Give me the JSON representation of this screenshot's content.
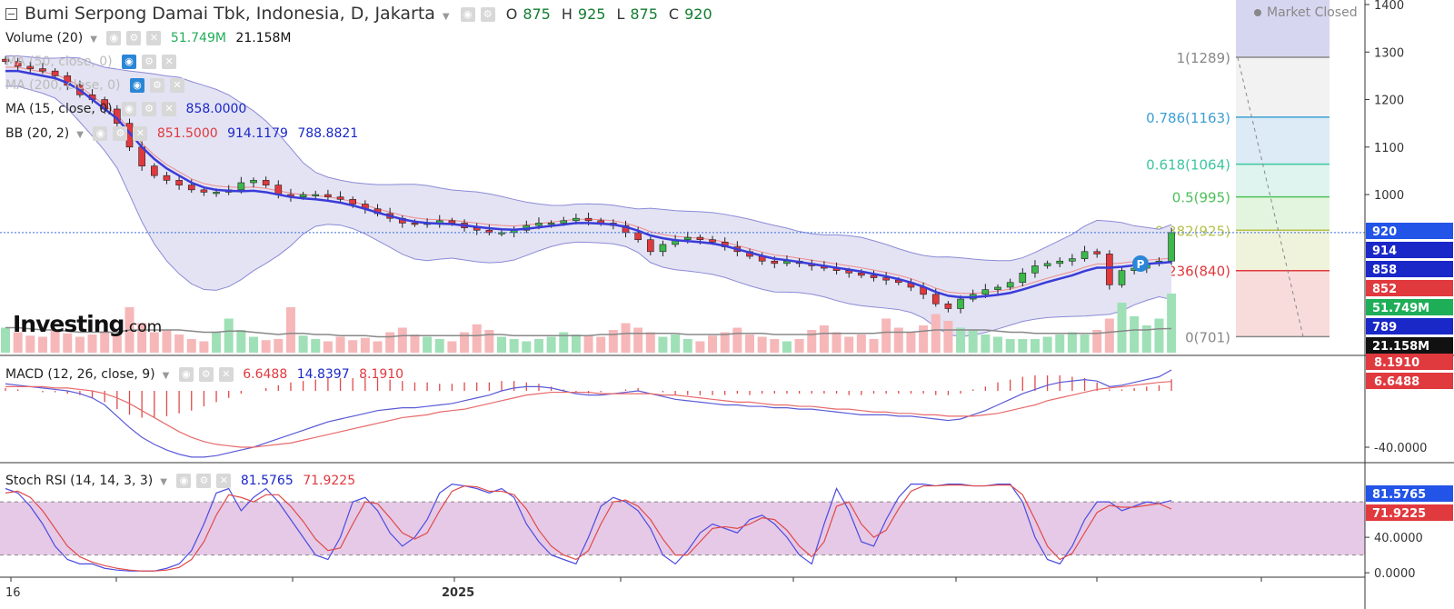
{
  "header": {
    "title": "Bumi Serpong Damai Tbk, Indonesia, D, Jakarta",
    "ohlc": [
      {
        "label": "O",
        "value": "875"
      },
      {
        "label": "H",
        "value": "925"
      },
      {
        "label": "L",
        "value": "875"
      },
      {
        "label": "C",
        "value": "920"
      }
    ],
    "market_status": "Market Closed"
  },
  "legends": {
    "volume": {
      "label": "Volume (20)",
      "v1": "51.749M",
      "v2": "21.158M"
    },
    "ma_a": {
      "label": "MA (50, close, 0)"
    },
    "ma_b": {
      "label": "MA (200, close, 0)"
    },
    "ma15": {
      "label": "MA (15, close, 0)",
      "v1": "858.0000"
    },
    "bb": {
      "label": "BB (20, 2)",
      "v1": "851.5000",
      "v2": "914.1179",
      "v3": "788.8821"
    },
    "macd": {
      "label": "MACD (12, 26, close, 9)",
      "v1": "6.6488",
      "v2": "14.8397",
      "v3": "8.1910"
    },
    "stoch": {
      "label": "Stoch RSI (14, 14, 3, 3)",
      "v1": "81.5765",
      "v2": "71.9225"
    }
  },
  "logo": {
    "main": "Investing",
    "suffix": ".com"
  },
  "colors": {
    "up": "#3bb94b",
    "down": "#e0393e",
    "ma15": "#3a3cd8",
    "bb_band": "#8b8bd6",
    "bb_fill": "#e3e3f3",
    "volume_up": "#9fe0b7",
    "volume_down": "#f6b7b9",
    "stoch_fill": "#e6c9e6",
    "stoch_k": "#4c4ce0",
    "stoch_d": "#e04a4a"
  },
  "icons": [
    "eye-icon",
    "gear-icon",
    "close-icon",
    "chevron-down-icon",
    "pivot-marker-icon"
  ],
  "chart_data": [
    {
      "type": "candlestick",
      "ylim": [
        650,
        1400
      ],
      "yticks": [
        "1400",
        "1300",
        "1200",
        "1100",
        "1000"
      ],
      "x_labels": [
        "16",
        "2025"
      ],
      "price_labels": [
        {
          "text": "920",
          "color": "#2354e8"
        },
        {
          "text": "914",
          "color": "#1a28c8"
        },
        {
          "text": "858",
          "color": "#1a28c8"
        },
        {
          "text": "852",
          "color": "#e0393e"
        },
        {
          "text": "51.749M",
          "color": "#1fae58"
        },
        {
          "text": "789",
          "color": "#1a28c8"
        },
        {
          "text": "21.158M",
          "color": "#111111"
        }
      ],
      "fibonacci": [
        {
          "label": "1(1289)",
          "level": 1289,
          "color": "#888888"
        },
        {
          "label": "0.786(1163)",
          "level": 1163,
          "color": "#3d9fd4"
        },
        {
          "label": "0.618(1064)",
          "level": 1064,
          "color": "#3ec7a0"
        },
        {
          "label": "0.5(995)",
          "level": 995,
          "color": "#4cc05a"
        },
        {
          "label": "0.382(925)",
          "level": 925,
          "color": "#b7c24a"
        },
        {
          "label": "0.236(840)",
          "level": 840,
          "color": "#e0393e"
        },
        {
          "label": "0(701)",
          "level": 701,
          "color": "#888888"
        }
      ],
      "series": [
        {
          "name": "Close",
          "values": [
            1280,
            1270,
            1265,
            1260,
            1250,
            1230,
            1210,
            1200,
            1180,
            1150,
            1100,
            1060,
            1040,
            1030,
            1020,
            1010,
            1005,
            1005,
            1010,
            1025,
            1030,
            1020,
            1000,
            995,
            1000,
            1000,
            995,
            990,
            980,
            970,
            960,
            950,
            940,
            938,
            940,
            945,
            940,
            930,
            925,
            920,
            920,
            925,
            935,
            940,
            940,
            945,
            950,
            945,
            940,
            935,
            920,
            905,
            880,
            895,
            905,
            910,
            905,
            900,
            890,
            880,
            870,
            860,
            855,
            860,
            855,
            850,
            845,
            840,
            835,
            830,
            825,
            820,
            815,
            805,
            790,
            770,
            760,
            780,
            790,
            800,
            805,
            815,
            835,
            850,
            855,
            860,
            865,
            880,
            875,
            810,
            840,
            845,
            855,
            860,
            920
          ]
        },
        {
          "name": "MA15",
          "values": [
            1260,
            1260,
            1255,
            1250,
            1245,
            1235,
            1220,
            1200,
            1180,
            1160,
            1130,
            1100,
            1075,
            1055,
            1040,
            1025,
            1015,
            1010,
            1008,
            1007,
            1008,
            1005,
            1000,
            995,
            992,
            990,
            987,
            983,
            977,
            970,
            962,
            955,
            948,
            943,
            940,
            939,
            938,
            935,
            932,
            929,
            927,
            926,
            928,
            931,
            934,
            937,
            940,
            940,
            939,
            937,
            932,
            924,
            914,
            908,
            904,
            902,
            900,
            897,
            892,
            885,
            878,
            871,
            865,
            862,
            858,
            854,
            850,
            846,
            842,
            838,
            833,
            828,
            822,
            815,
            806,
            795,
            787,
            784,
            784,
            786,
            789,
            793,
            800,
            808,
            816,
            823,
            830,
            839,
            846,
            846,
            848,
            851,
            854,
            856,
            858
          ]
        }
      ]
    },
    {
      "type": "bar",
      "name": "Volume",
      "values": [
        22,
        18,
        15,
        14,
        20,
        17,
        14,
        16,
        19,
        15,
        40,
        26,
        18,
        20,
        16,
        12,
        10,
        18,
        30,
        20,
        14,
        11,
        12,
        40,
        15,
        12,
        10,
        14,
        11,
        13,
        10,
        18,
        22,
        16,
        14,
        12,
        10,
        18,
        25,
        20,
        14,
        12,
        10,
        12,
        14,
        18,
        16,
        15,
        14,
        20,
        26,
        22,
        18,
        14,
        16,
        12,
        10,
        15,
        18,
        22,
        16,
        14,
        12,
        10,
        12,
        20,
        24,
        18,
        14,
        16,
        12,
        30,
        22,
        18,
        24,
        34,
        28,
        22,
        20,
        16,
        14,
        12,
        12,
        12,
        14,
        16,
        18,
        16,
        20,
        30,
        44,
        32,
        24,
        30,
        52
      ],
      "ma_values": [
        22,
        22,
        21,
        20,
        20,
        19,
        18,
        18,
        18,
        18,
        20,
        20,
        20,
        20,
        20,
        19,
        18,
        18,
        19,
        19,
        18,
        17,
        16,
        17,
        17,
        16,
        16,
        15,
        15,
        15,
        14,
        14,
        15,
        15,
        15,
        15,
        15,
        15,
        15,
        16,
        16,
        15,
        15,
        15,
        15,
        15,
        15,
        15,
        16,
        16,
        17,
        17,
        17,
        17,
        17,
        16,
        16,
        16,
        16,
        17,
        17,
        17,
        16,
        16,
        16,
        16,
        17,
        17,
        17,
        17,
        17,
        18,
        18,
        18,
        19,
        20,
        20,
        20,
        20,
        20,
        19,
        18,
        18,
        17,
        17,
        17,
        17,
        17,
        17,
        18,
        19,
        20,
        20,
        21,
        21.158
      ]
    },
    {
      "type": "line",
      "name": "MACD",
      "yticks": [
        "-40.0000"
      ],
      "price_labels": [
        {
          "text": "8.1910",
          "color": "#e0393e"
        },
        {
          "text": "6.6488",
          "color": "#e0393e"
        }
      ],
      "series": [
        {
          "name": "MACD",
          "values": [
            5,
            4,
            3,
            2,
            1,
            0,
            -2,
            -5,
            -10,
            -18,
            -26,
            -33,
            -38,
            -42,
            -45,
            -47,
            -47,
            -46,
            -44,
            -42,
            -40,
            -37,
            -34,
            -31,
            -28,
            -25,
            -22,
            -20,
            -18,
            -16,
            -14,
            -13,
            -12,
            -12,
            -11,
            -10,
            -9,
            -7,
            -5,
            -3,
            0,
            2,
            3,
            3,
            2,
            0,
            -2,
            -3,
            -3,
            -2,
            -1,
            0,
            -2,
            -4,
            -6,
            -7,
            -8,
            -9,
            -10,
            -10,
            -11,
            -11,
            -12,
            -12,
            -13,
            -13,
            -14,
            -15,
            -16,
            -17,
            -17,
            -17,
            -18,
            -18,
            -19,
            -20,
            -21,
            -20,
            -17,
            -14,
            -10,
            -6,
            -2,
            1,
            4,
            6,
            7,
            8,
            7,
            3,
            4,
            6,
            8,
            10,
            14.8397
          ]
        },
        {
          "name": "Signal",
          "values": [
            3,
            3,
            3,
            3,
            2,
            2,
            1,
            0,
            -2,
            -5,
            -9,
            -14,
            -19,
            -24,
            -29,
            -33,
            -36,
            -38,
            -39,
            -40,
            -40,
            -39,
            -38,
            -37,
            -35,
            -33,
            -31,
            -29,
            -27,
            -25,
            -23,
            -21,
            -19,
            -18,
            -17,
            -15,
            -14,
            -13,
            -11,
            -9,
            -7,
            -5,
            -3,
            -2,
            -1,
            -1,
            -1,
            -1,
            -2,
            -2,
            -2,
            -2,
            -2,
            -3,
            -3,
            -4,
            -5,
            -6,
            -7,
            -8,
            -8,
            -9,
            -10,
            -10,
            -11,
            -11,
            -12,
            -13,
            -13,
            -14,
            -15,
            -15,
            -16,
            -16,
            -17,
            -17,
            -18,
            -18,
            -18,
            -17,
            -16,
            -14,
            -12,
            -10,
            -7,
            -5,
            -3,
            -1,
            1,
            2,
            3,
            4,
            5,
            6,
            6.6488
          ]
        },
        {
          "name": "Histogram",
          "values": [
            2,
            1,
            0,
            -1,
            -1,
            -2,
            -3,
            -5,
            -8,
            -13,
            -17,
            -19,
            -19,
            -18,
            -16,
            -14,
            -11,
            -8,
            -5,
            -2,
            0,
            2,
            4,
            6,
            7,
            8,
            9,
            9,
            9,
            9,
            9,
            8,
            7,
            6,
            6,
            5,
            5,
            6,
            6,
            6,
            7,
            7,
            6,
            5,
            3,
            1,
            -1,
            -2,
            -1,
            0,
            1,
            2,
            0,
            -1,
            -3,
            -3,
            -3,
            -3,
            -3,
            -2,
            -3,
            -2,
            -2,
            -2,
            -2,
            -2,
            -2,
            -2,
            -3,
            -3,
            -2,
            -2,
            -2,
            -2,
            -2,
            -3,
            -3,
            -2,
            1,
            3,
            6,
            8,
            10,
            11,
            11,
            11,
            10,
            9,
            6,
            1,
            1,
            2,
            3,
            4,
            8.191
          ]
        }
      ]
    },
    {
      "type": "line",
      "name": "Stoch RSI",
      "ylim": [
        -5,
        115
      ],
      "yticks": [
        "40.0000",
        "0.0000"
      ],
      "bands": [
        20,
        80
      ],
      "price_labels": [
        {
          "text": "81.5765",
          "color": "#2354e8"
        },
        {
          "text": "71.9225",
          "color": "#e0393e"
        }
      ],
      "series": [
        {
          "name": "%K",
          "values": [
            95,
            90,
            75,
            55,
            30,
            15,
            10,
            10,
            5,
            3,
            2,
            2,
            2,
            5,
            10,
            25,
            55,
            90,
            95,
            70,
            85,
            95,
            80,
            60,
            40,
            20,
            15,
            40,
            80,
            85,
            70,
            45,
            30,
            40,
            60,
            90,
            100,
            98,
            95,
            90,
            95,
            85,
            55,
            35,
            20,
            15,
            10,
            40,
            75,
            85,
            80,
            70,
            50,
            20,
            10,
            25,
            45,
            55,
            50,
            45,
            60,
            65,
            55,
            40,
            20,
            10,
            55,
            95,
            70,
            35,
            30,
            60,
            85,
            100,
            100,
            98,
            100,
            100,
            98,
            98,
            100,
            100,
            80,
            40,
            15,
            10,
            30,
            60,
            80,
            80,
            70,
            75,
            80,
            78,
            81.5765
          ]
        },
        {
          "name": "%D",
          "values": [
            90,
            92,
            85,
            70,
            50,
            30,
            18,
            12,
            8,
            5,
            3,
            2,
            2,
            3,
            6,
            15,
            35,
            65,
            88,
            85,
            80,
            88,
            88,
            75,
            58,
            38,
            25,
            28,
            55,
            80,
            78,
            62,
            45,
            38,
            45,
            70,
            92,
            98,
            97,
            92,
            92,
            88,
            72,
            48,
            30,
            20,
            15,
            25,
            55,
            80,
            82,
            75,
            60,
            38,
            20,
            20,
            35,
            50,
            52,
            50,
            55,
            62,
            60,
            48,
            30,
            18,
            35,
            75,
            80,
            55,
            40,
            48,
            72,
            92,
            98,
            98,
            99,
            99,
            98,
            98,
            99,
            99,
            88,
            60,
            30,
            15,
            22,
            45,
            68,
            76,
            74,
            74,
            76,
            78,
            71.9225
          ]
        }
      ]
    }
  ]
}
